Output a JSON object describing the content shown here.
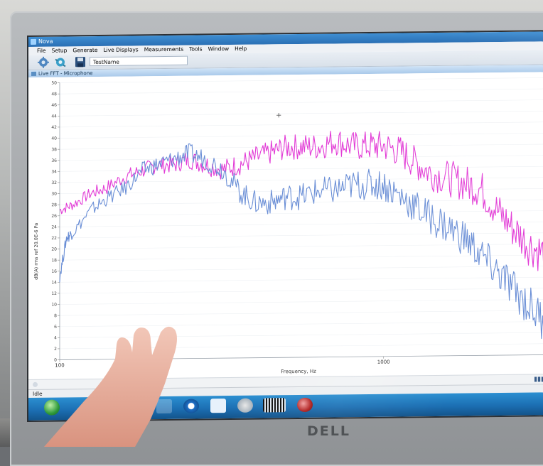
{
  "window": {
    "title": "Nova"
  },
  "menu": [
    "File",
    "Setup",
    "Generate",
    "Live Displays",
    "Measurements",
    "Tools",
    "Window",
    "Help"
  ],
  "toolbar": {
    "test_name": "TestName",
    "icons": [
      "gear-icon",
      "gear-refresh-icon",
      "save-icon"
    ]
  },
  "panel": {
    "title": "Live FFT - Microphone"
  },
  "status": {
    "text": "Idle"
  },
  "monitor": {
    "brand": "DELL"
  },
  "colors": {
    "series_red": "#e23bd6",
    "series_blue": "#6b8fd6",
    "titlebar": "#2a6fb4",
    "taskbar": "#1c6fb3"
  },
  "chart_data": {
    "type": "line",
    "title": "",
    "xlabel": "Frequency, Hz",
    "ylabel": "dB(A) rms ref 20.0E-6 Pa",
    "xscale": "log",
    "xlim": [
      100,
      3300
    ],
    "ylim": [
      0,
      50
    ],
    "xticks": [
      100,
      1000
    ],
    "xtick_labels": [
      "100",
      "1000"
    ],
    "yticks": [
      0,
      2,
      4,
      6,
      8,
      10,
      12,
      14,
      16,
      18,
      20,
      22,
      24,
      26,
      28,
      30,
      32,
      34,
      36,
      38,
      40,
      42,
      44,
      46,
      48,
      50
    ],
    "grid": true,
    "series": [
      {
        "x": [
          100,
          110,
          125,
          140,
          160,
          180,
          200,
          225,
          250,
          280,
          320,
          360,
          400,
          450,
          500,
          560,
          630,
          710,
          800,
          900,
          1000,
          1120,
          1250,
          1400,
          1600,
          1800,
          2000,
          2250,
          2500,
          2800,
          3150
        ],
        "values": [
          27,
          28,
          30,
          31,
          33,
          34,
          35,
          35,
          36,
          35,
          34,
          35,
          36,
          37,
          38,
          38,
          38,
          39,
          38,
          38,
          38,
          37,
          35,
          33,
          32,
          31,
          30,
          26,
          23,
          20,
          18
        ]
      },
      {
        "x": [
          100,
          105,
          110,
          125,
          140,
          160,
          180,
          200,
          225,
          250,
          280,
          320,
          360,
          400,
          450,
          500,
          560,
          630,
          710,
          800,
          900,
          1000,
          1120,
          1250,
          1400,
          1600,
          1800,
          2000,
          2250,
          2500,
          2800,
          3150
        ],
        "values": [
          15,
          22,
          23,
          27,
          29,
          31,
          34,
          35,
          36,
          37,
          36,
          34,
          30,
          28,
          28,
          29,
          29,
          30,
          30,
          31,
          31,
          31,
          29,
          27,
          25,
          23,
          21,
          18,
          15,
          12,
          9,
          6
        ]
      }
    ]
  }
}
